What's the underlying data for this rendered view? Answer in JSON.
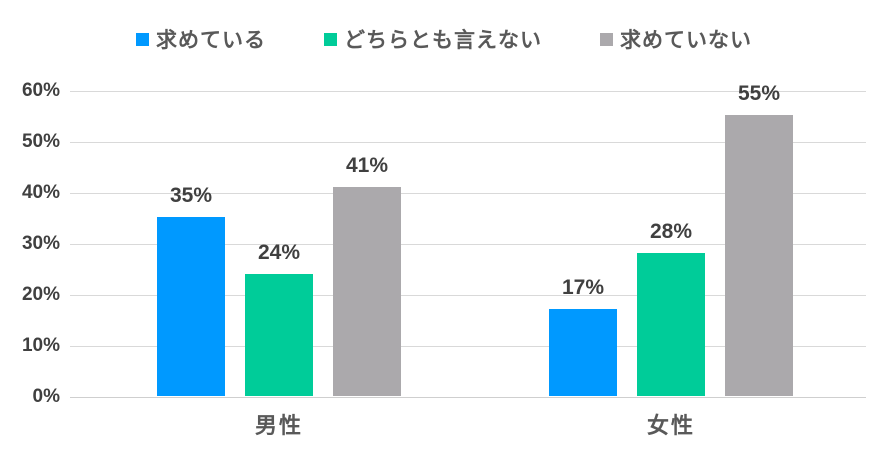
{
  "legend": {
    "items": [
      {
        "label": "求めている",
        "color": "#0099ff"
      },
      {
        "label": "どちらとも言えない",
        "color": "#00cc99"
      },
      {
        "label": "求めていない",
        "color": "#aba9ac"
      }
    ]
  },
  "y_axis": {
    "ticks": [
      "60%",
      "50%",
      "40%",
      "30%",
      "20%",
      "10%",
      "0%"
    ]
  },
  "chart_data": {
    "type": "bar",
    "categories": [
      "男性",
      "女性"
    ],
    "series": [
      {
        "name": "求めている",
        "color": "#0099ff",
        "values": [
          35,
          17
        ]
      },
      {
        "name": "どちらとも言えない",
        "color": "#00cc99",
        "values": [
          24,
          28
        ]
      },
      {
        "name": "求めていない",
        "color": "#aba9ac",
        "values": [
          41,
          55
        ]
      }
    ],
    "value_suffix": "%",
    "title": "",
    "xlabel": "",
    "ylabel": "",
    "ylim": [
      0,
      60
    ],
    "ytick_step": 10,
    "grid": true,
    "legend_position": "top",
    "data_labels": true
  }
}
